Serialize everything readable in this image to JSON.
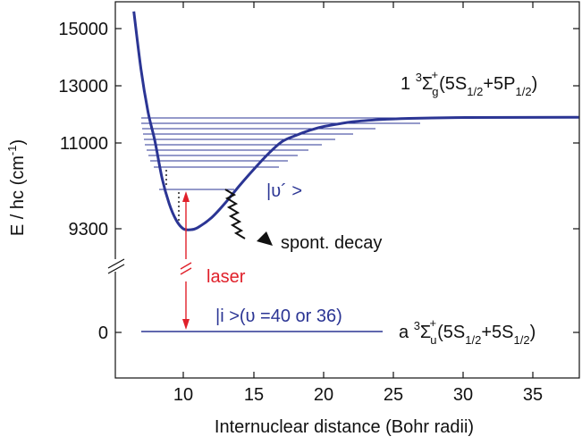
{
  "colors": {
    "curve": "#2b3594",
    "laser": "#e0202a",
    "axis": "#111111",
    "arrow": "#111111"
  },
  "axes": {
    "x_label": "Internuclear distance (Bohr radii)",
    "y_label": "E / hc  (cm",
    "y_label_sup": "-1",
    "y_label_end": ")",
    "x_ticks": [
      "10",
      "15",
      "20",
      "25",
      "30",
      "35"
    ],
    "y_ticks": [
      "15000",
      "13000",
      "11000",
      "9300",
      "0"
    ]
  },
  "chart_data": {
    "type": "line",
    "xlabel": "Internuclear distance (Bohr radii)",
    "ylabel": "E / hc (cm-1)",
    "x_ticks": [
      10,
      15,
      20,
      25,
      30,
      35
    ],
    "y_ticks": [
      15000,
      13000,
      11000,
      9300,
      0
    ],
    "y_axis_break": true,
    "excited_potential": {
      "name": "1 3Σg+(5S1/2+5P1/2)",
      "points": [
        [
          6.5,
          15600
        ],
        [
          7,
          13600
        ],
        [
          7.5,
          12100
        ],
        [
          8,
          11050
        ],
        [
          8.5,
          10300
        ],
        [
          9,
          9800
        ],
        [
          9.5,
          9470
        ],
        [
          10,
          9300
        ],
        [
          10.5,
          9280
        ],
        [
          11,
          9320
        ],
        [
          12,
          9520
        ],
        [
          13,
          9820
        ],
        [
          14,
          10160
        ],
        [
          15,
          10480
        ],
        [
          16,
          10780
        ],
        [
          17,
          11050
        ],
        [
          18,
          11270
        ],
        [
          19,
          11450
        ],
        [
          20,
          11580
        ],
        [
          22,
          11740
        ],
        [
          24,
          11820
        ],
        [
          26,
          11860
        ],
        [
          30,
          11890
        ],
        [
          38,
          11900
        ]
      ]
    },
    "ground_state": {
      "name": "a 3Σu+(5S1/2+5S1/2)",
      "points": [
        [
          7,
          0
        ],
        [
          24.5,
          0
        ]
      ]
    }
  },
  "labels": {
    "excited_state": {
      "prefix": "1 ",
      "sup": "3",
      "sigma": "Σ",
      "sub": "g",
      "sup2": "+",
      "open": "(5S",
      "s1": "1/2",
      "mid": "+5P",
      "s2": "1/2",
      "close": ")"
    },
    "ground_state": {
      "prefix": "a ",
      "sup": "3",
      "sigma": "Σ",
      "sub": "u",
      "sup2": "+",
      "open": "(5S",
      "s1": "1/2",
      "mid": "+5S",
      "s2": "1/2",
      "close": ")"
    },
    "vprime_state": "|υ´ >",
    "initial_state": "|i >(υ =40 or 36)",
    "laser": "laser",
    "decay": "spont. decay"
  }
}
